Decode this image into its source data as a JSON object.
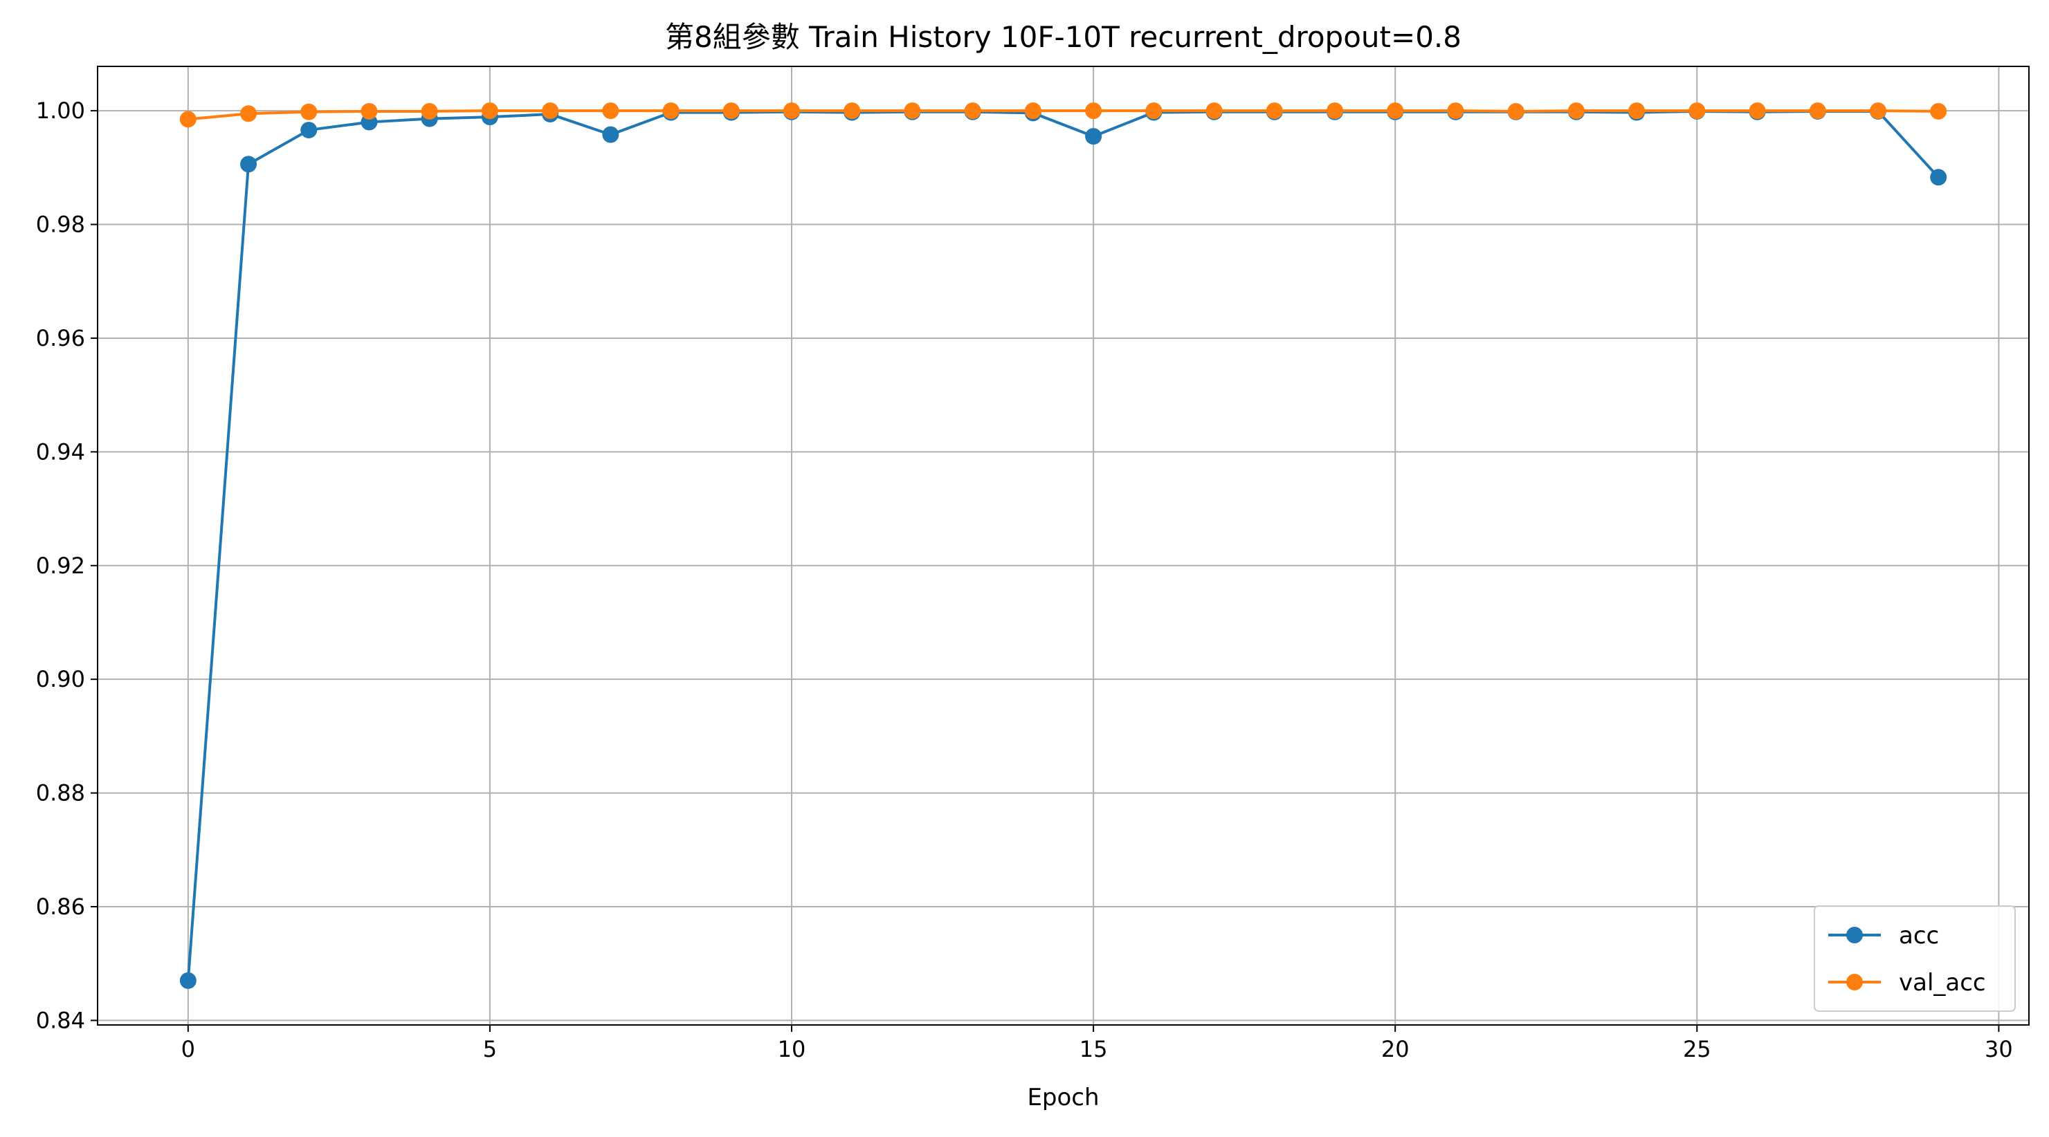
{
  "chart_data": {
    "type": "line",
    "title": "第8組參數 Train History 10F-10T recurrent_dropout=0.8",
    "xlabel": "Epoch",
    "ylabel": "",
    "xlim": [
      -1.5,
      30.5
    ],
    "ylim": [
      0.8392,
      1.0078
    ],
    "xticks": [
      0,
      5,
      10,
      15,
      20,
      25,
      30
    ],
    "yticks": [
      0.84,
      0.86,
      0.88,
      0.9,
      0.92,
      0.94,
      0.96,
      0.98,
      1.0
    ],
    "ytick_labels": [
      "0.84",
      "0.86",
      "0.88",
      "0.90",
      "0.92",
      "0.94",
      "0.96",
      "0.98",
      "1.00"
    ],
    "grid": true,
    "legend_position": "lower-right",
    "x": [
      0,
      1,
      2,
      3,
      4,
      5,
      6,
      7,
      8,
      9,
      10,
      11,
      12,
      13,
      14,
      15,
      16,
      17,
      18,
      19,
      20,
      21,
      22,
      23,
      24,
      25,
      26,
      27,
      28,
      29
    ],
    "series": [
      {
        "name": "acc",
        "color": "#1f77b4",
        "values": [
          0.847,
          0.9906,
          0.9966,
          0.998,
          0.9986,
          0.9989,
          0.9994,
          0.9958,
          0.9997,
          0.9997,
          0.9998,
          0.9997,
          0.9998,
          0.9998,
          0.9996,
          0.9955,
          0.9997,
          0.9998,
          0.9998,
          0.9998,
          0.9998,
          0.9998,
          0.9998,
          0.9998,
          0.9997,
          0.9999,
          0.9998,
          0.9999,
          0.9999,
          0.9883
        ]
      },
      {
        "name": "val_acc",
        "color": "#ff7f0e",
        "values": [
          0.9985,
          0.9995,
          0.9998,
          0.9999,
          0.9999,
          1.0,
          1.0,
          1.0,
          1.0,
          1.0,
          1.0,
          1.0,
          1.0,
          1.0,
          1.0,
          1.0,
          1.0,
          1.0,
          1.0,
          1.0,
          1.0,
          1.0,
          0.9999,
          1.0,
          1.0,
          1.0,
          1.0,
          1.0,
          1.0,
          0.9999
        ]
      }
    ]
  }
}
